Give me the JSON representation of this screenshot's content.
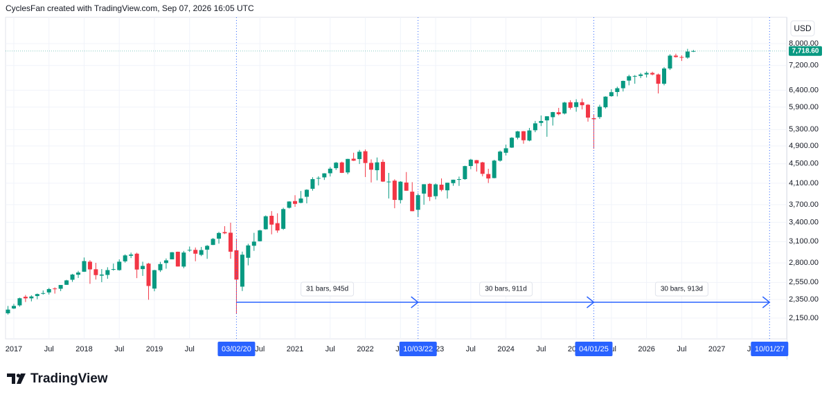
{
  "header": "CyclesFan created with TradingView.com, Sep 07, 2026 16:05 UTC",
  "brand": "TradingView",
  "chart_data": {
    "type": "candlestick",
    "currency": "USD",
    "log_scale": true,
    "grid": true,
    "up_color": "#089981",
    "down_color": "#f23645",
    "marker_color": "#2962ff",
    "ylim": [
      1946,
      9071
    ],
    "yticks": [
      {
        "value": 8000,
        "label": "8,000.00"
      },
      {
        "value": 7200,
        "label": "7,200.00"
      },
      {
        "value": 6400,
        "label": "6,400.00"
      },
      {
        "value": 5900,
        "label": "5,900.00"
      },
      {
        "value": 5300,
        "label": "5,300.00"
      },
      {
        "value": 4900,
        "label": "4,900.00"
      },
      {
        "value": 4500,
        "label": "4,500.00"
      },
      {
        "value": 4100,
        "label": "4,100.00"
      },
      {
        "value": 3700,
        "label": "3,700.00"
      },
      {
        "value": 3400,
        "label": "3,400.00"
      },
      {
        "value": 3100,
        "label": "3,100.00"
      },
      {
        "value": 2800,
        "label": "2,800.00"
      },
      {
        "value": 2550,
        "label": "2,550.00"
      },
      {
        "value": 2350,
        "label": "2,350.00"
      },
      {
        "value": 2150,
        "label": "2,150.00"
      }
    ],
    "xticks": [
      {
        "value": "2017-01",
        "label": "2017"
      },
      {
        "value": "2017-07",
        "label": "Jul"
      },
      {
        "value": "2018-01",
        "label": "2018"
      },
      {
        "value": "2018-07",
        "label": "Jul"
      },
      {
        "value": "2019-01",
        "label": "2019"
      },
      {
        "value": "2019-07",
        "label": "Jul"
      },
      {
        "value": "2020-07",
        "label": "Jul"
      },
      {
        "value": "2021-01",
        "label": "2021"
      },
      {
        "value": "2021-07",
        "label": "Jul"
      },
      {
        "value": "2022-01",
        "label": "2022"
      },
      {
        "value": "2022-07",
        "label": "Jul"
      },
      {
        "value": "2023-01",
        "label": "2023"
      },
      {
        "value": "2023-07",
        "label": "Jul"
      },
      {
        "value": "2024-01",
        "label": "2024"
      },
      {
        "value": "2024-07",
        "label": "Jul"
      },
      {
        "value": "2025-01",
        "label": "2025"
      },
      {
        "value": "2025-07",
        "label": "Jul"
      },
      {
        "value": "2026-01",
        "label": "2026"
      },
      {
        "value": "2026-07",
        "label": "Jul"
      },
      {
        "value": "2027-01",
        "label": "2027"
      },
      {
        "value": "2027-07",
        "label": "Jul"
      }
    ],
    "markers": [
      {
        "x": "2020-03",
        "label": "03/02/20"
      },
      {
        "x": "2022-10",
        "label": "10/03/22"
      },
      {
        "x": "2025-04",
        "label": "04/01/25"
      },
      {
        "x": "2027-10",
        "label": "10/01/27"
      }
    ],
    "measures": [
      {
        "from": "2020-03",
        "to": "2022-10",
        "label": "31 bars, 945d"
      },
      {
        "from": "2022-10",
        "to": "2025-04",
        "label": "30 bars, 911d"
      },
      {
        "from": "2025-04",
        "to": "2027-10",
        "label": "30 bars, 913d"
      }
    ],
    "last_label": "7,718.60",
    "x": [
      "2016-12",
      "2017-01",
      "2017-02",
      "2017-03",
      "2017-04",
      "2017-05",
      "2017-06",
      "2017-07",
      "2017-08",
      "2017-09",
      "2017-10",
      "2017-11",
      "2017-12",
      "2018-01",
      "2018-02",
      "2018-03",
      "2018-04",
      "2018-05",
      "2018-06",
      "2018-07",
      "2018-08",
      "2018-09",
      "2018-10",
      "2018-11",
      "2018-12",
      "2019-01",
      "2019-02",
      "2019-03",
      "2019-04",
      "2019-05",
      "2019-06",
      "2019-07",
      "2019-08",
      "2019-09",
      "2019-10",
      "2019-11",
      "2019-12",
      "2020-01",
      "2020-02",
      "2020-03",
      "2020-04",
      "2020-05",
      "2020-06",
      "2020-07",
      "2020-08",
      "2020-09",
      "2020-10",
      "2020-11",
      "2020-12",
      "2021-01",
      "2021-02",
      "2021-03",
      "2021-04",
      "2021-05",
      "2021-06",
      "2021-07",
      "2021-08",
      "2021-09",
      "2021-10",
      "2021-11",
      "2021-12",
      "2022-01",
      "2022-02",
      "2022-03",
      "2022-04",
      "2022-05",
      "2022-06",
      "2022-07",
      "2022-08",
      "2022-09",
      "2022-10",
      "2022-11",
      "2022-12",
      "2023-01",
      "2023-02",
      "2023-03",
      "2023-04",
      "2023-05",
      "2023-06",
      "2023-07",
      "2023-08",
      "2023-09",
      "2023-10",
      "2023-11",
      "2023-12",
      "2024-01",
      "2024-02",
      "2024-03",
      "2024-04",
      "2024-05",
      "2024-06",
      "2024-07",
      "2024-08",
      "2024-09",
      "2024-10",
      "2024-11",
      "2024-12",
      "2025-01",
      "2025-02",
      "2025-03",
      "2025-04",
      "2025-05",
      "2025-06",
      "2025-07",
      "2025-08",
      "2025-09",
      "2025-10",
      "2025-11",
      "2025-12",
      "2026-01",
      "2026-02",
      "2026-03",
      "2026-04",
      "2026-05",
      "2026-06",
      "2026-07",
      "2026-08",
      "2026-09"
    ],
    "open": [
      2200,
      2251,
      2285,
      2381,
      2363,
      2389,
      2415,
      2431,
      2477,
      2474,
      2521,
      2583,
      2646,
      2684,
      2816,
      2716,
      2634,
      2643,
      2718,
      2705,
      2821,
      2897,
      2926,
      2718,
      2790,
      2476,
      2703,
      2798,
      2848,
      2953,
      2751,
      2972,
      2980,
      2910,
      2983,
      3051,
      3144,
      3245,
      3235,
      2974,
      2499,
      2869,
      3039,
      3106,
      3289,
      3508,
      3386,
      3296,
      3645,
      3764,
      3732,
      3842,
      3992,
      4192,
      4216,
      4300,
      4406,
      4528,
      4317,
      4610,
      4602,
      4778,
      4519,
      4363,
      4540,
      4131,
      4150,
      3782,
      4113,
      3937,
      3610,
      3901,
      4087,
      3853,
      4071,
      3963,
      4101,
      4166,
      4181,
      4451,
      4578,
      4530,
      4284,
      4202,
      4567,
      4743,
      4862,
      5098,
      5258,
      5029,
      5283,
      5471,
      5538,
      5624,
      5758,
      5724,
      6040,
      5904,
      6041,
      5968,
      5597,
      5626,
      5897,
      6219,
      6344,
      6460,
      6700,
      6840,
      6850,
      6900,
      6950,
      6900,
      6600,
      7100,
      7550,
      7500,
      7480,
      7700
    ],
    "high": [
      2278,
      2301,
      2371,
      2401,
      2398,
      2418,
      2454,
      2484,
      2491,
      2519,
      2582,
      2657,
      2695,
      2873,
      2836,
      2801,
      2718,
      2742,
      2791,
      2848,
      2917,
      2941,
      2940,
      2816,
      2800,
      2708,
      2814,
      2860,
      2949,
      2955,
      2965,
      3028,
      3014,
      3022,
      3050,
      3154,
      3248,
      3338,
      3394,
      3137,
      2955,
      3068,
      3233,
      3280,
      3514,
      3588,
      3550,
      3646,
      3760,
      3871,
      3950,
      3983,
      4219,
      4238,
      4302,
      4430,
      4538,
      4546,
      4608,
      4744,
      4808,
      4818,
      4595,
      4637,
      4593,
      4307,
      4178,
      4140,
      4325,
      4120,
      3906,
      4080,
      4101,
      4095,
      4195,
      4111,
      4170,
      4232,
      4458,
      4607,
      4584,
      4541,
      4393,
      4587,
      4794,
      4931,
      5112,
      5265,
      5264,
      5342,
      5524,
      5670,
      5652,
      5768,
      5879,
      6053,
      6100,
      6128,
      6147,
      5987,
      5696,
      5969,
      6215,
      6427,
      6508,
      6700,
      6890,
      6880,
      6950,
      7000,
      6990,
      6930,
      7150,
      7600,
      7620,
      7560,
      7800,
      7760
    ],
    "low": [
      2187,
      2245,
      2271,
      2322,
      2329,
      2353,
      2406,
      2407,
      2417,
      2446,
      2520,
      2557,
      2605,
      2682,
      2533,
      2585,
      2553,
      2595,
      2698,
      2698,
      2803,
      2865,
      2603,
      2631,
      2347,
      2444,
      2681,
      2723,
      2848,
      2751,
      2729,
      2952,
      2822,
      2892,
      2855,
      3050,
      3070,
      3214,
      2856,
      2192,
      2447,
      2767,
      2966,
      3102,
      3284,
      3210,
      3234,
      3279,
      3633,
      3662,
      3725,
      3723,
      3956,
      4056,
      4164,
      4234,
      4368,
      4305,
      4279,
      4560,
      4495,
      4223,
      4115,
      4157,
      4124,
      3811,
      3637,
      3722,
      3955,
      3585,
      3492,
      3699,
      3765,
      3795,
      3943,
      3809,
      4049,
      4048,
      4167,
      4385,
      4335,
      4238,
      4104,
      4197,
      4546,
      4682,
      4853,
      5056,
      4953,
      5011,
      5234,
      5390,
      5120,
      5403,
      5674,
      5697,
      5833,
      5773,
      5837,
      5505,
      4835,
      5578,
      5862,
      6201,
      6212,
      6360,
      6550,
      6600,
      6780,
      6800,
      6870,
      6300,
      6550,
      7050,
      7480,
      7360,
      7440,
      7680
    ],
    "close": [
      2239,
      2279,
      2364,
      2363,
      2384,
      2412,
      2423,
      2470,
      2472,
      2519,
      2575,
      2648,
      2674,
      2824,
      2714,
      2641,
      2648,
      2705,
      2718,
      2816,
      2902,
      2914,
      2712,
      2760,
      2507,
      2704,
      2784,
      2834,
      2946,
      2752,
      2942,
      2980,
      2926,
      2977,
      3038,
      3141,
      3231,
      3226,
      2954,
      2585,
      2912,
      3044,
      3100,
      3271,
      3500,
      3363,
      3270,
      3622,
      3756,
      3714,
      3811,
      3973,
      4181,
      4204,
      4298,
      4395,
      4523,
      4308,
      4605,
      4567,
      4766,
      4516,
      4374,
      4530,
      4132,
      4132,
      3785,
      4130,
      3955,
      3586,
      3872,
      4080,
      3840,
      4077,
      3970,
      4109,
      4169,
      4180,
      4450,
      4589,
      4508,
      4288,
      4194,
      4568,
      4770,
      4846,
      5096,
      5254,
      5036,
      5278,
      5460,
      5522,
      5648,
      5762,
      5705,
      6032,
      5882,
      6041,
      5955,
      5612,
      5569,
      5912,
      6205,
      6339,
      6460,
      6690,
      6840,
      6850,
      6900,
      6950,
      6900,
      6600,
      7100,
      7550,
      7500,
      7480,
      7700,
      7718.6
    ]
  }
}
